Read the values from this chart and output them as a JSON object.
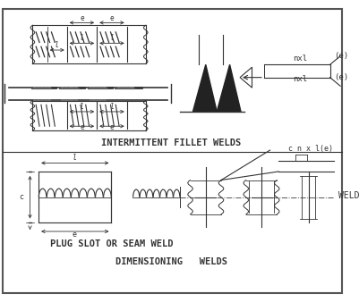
{
  "bg_color": "#ffffff",
  "border_color": "#555555",
  "line_color": "#333333",
  "title1": "INTERMITTENT FILLET WELDS",
  "title2": "PLUG SLOT OR SEAM WELD",
  "title3": "DIMENSIONING   WELDS",
  "fig_bg": "#ffffff"
}
